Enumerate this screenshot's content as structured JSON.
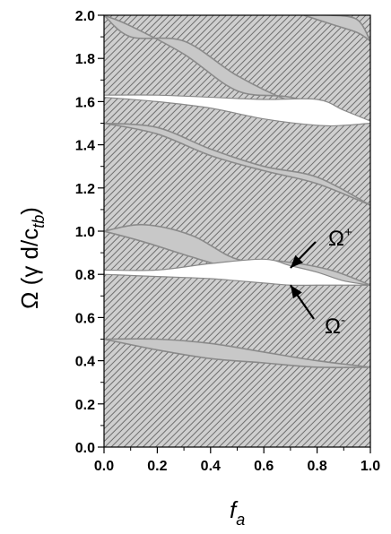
{
  "chart_data": {
    "type": "line",
    "title": "",
    "xlabel": "f",
    "xlabel_sub": "a",
    "ylabel": "Ω (γ d/c",
    "ylabel_sub": "tb",
    "ylabel_end": ")",
    "xlim": [
      0.0,
      1.0
    ],
    "ylim": [
      0.0,
      2.0
    ],
    "x_ticks": [
      0.0,
      0.2,
      0.4,
      0.6,
      0.8,
      1.0
    ],
    "x_tick_labels": [
      "0.0",
      "0.2",
      "0.4",
      "0.6",
      "0.8",
      "1.0"
    ],
    "y_ticks": [
      0.0,
      0.2,
      0.4,
      0.6,
      0.8,
      1.0,
      1.2,
      1.4,
      1.6,
      1.8,
      2.0
    ],
    "y_tick_labels": [
      "0.0",
      "0.2",
      "0.4",
      "0.6",
      "0.8",
      "1.0",
      "1.2",
      "1.4",
      "1.6",
      "1.8",
      "2.0"
    ],
    "grid": false,
    "legend": "none",
    "colors": {
      "hatched_background": "#bdbdbd",
      "band_fill": "#c8c8c8",
      "gap_fill": "#ffffff",
      "band_edge": "#8a8a8a"
    },
    "annotations": [
      {
        "text": "Ω",
        "sup": "+",
        "points_to": [
          0.7,
          0.83
        ]
      },
      {
        "text": "Ω",
        "sup": "-",
        "points_to": [
          0.7,
          0.75
        ]
      }
    ],
    "gap_regions": [
      {
        "x": [
          0.0,
          0.2,
          0.4,
          0.6,
          0.7,
          0.8,
          0.9,
          1.0
        ],
        "upper": [
          0.82,
          0.82,
          0.85,
          0.87,
          0.84,
          0.81,
          0.77,
          0.75
        ],
        "lower": [
          0.8,
          0.79,
          0.78,
          0.76,
          0.75,
          0.75,
          0.75,
          0.75
        ]
      },
      {
        "x": [
          0.0,
          0.2,
          0.4,
          0.6,
          0.8,
          0.9,
          1.0
        ],
        "upper": [
          1.63,
          1.63,
          1.62,
          1.61,
          1.61,
          1.56,
          1.51
        ],
        "lower": [
          1.62,
          1.6,
          1.57,
          1.52,
          1.49,
          1.49,
          1.5
        ]
      }
    ],
    "series": [
      {
        "values_x": [
          0.0,
          0.2,
          0.4,
          0.6,
          0.8,
          1.0
        ],
        "values_y": [
          0.5,
          0.5,
          0.48,
          0.44,
          0.4,
          0.37
        ]
      },
      {
        "values_x": [
          0.0,
          0.2,
          0.4,
          0.6,
          0.8,
          1.0
        ],
        "values_y": [
          0.5,
          0.45,
          0.41,
          0.39,
          0.37,
          0.37
        ]
      },
      {
        "values_x": [
          0.0,
          0.15,
          0.33,
          0.5,
          0.67,
          0.85,
          1.0
        ],
        "values_y": [
          1.0,
          0.95,
          0.88,
          0.82,
          0.78,
          0.76,
          0.75
        ]
      },
      {
        "values_x": [
          0.0,
          0.15,
          0.33,
          0.5,
          0.67,
          0.85,
          1.0
        ],
        "values_y": [
          1.0,
          1.03,
          0.98,
          0.87,
          0.86,
          0.82,
          0.75
        ]
      },
      {
        "values_x": [
          0.0,
          0.2,
          0.4,
          0.6,
          0.8,
          1.0
        ],
        "values_y": [
          1.5,
          1.45,
          1.35,
          1.28,
          1.22,
          1.12
        ]
      },
      {
        "values_x": [
          0.0,
          0.2,
          0.4,
          0.6,
          0.8,
          1.0
        ],
        "values_y": [
          1.5,
          1.48,
          1.38,
          1.3,
          1.25,
          1.12
        ]
      },
      {
        "values_x": [
          0.0,
          0.1,
          0.3,
          0.5,
          0.7,
          0.9,
          1.0
        ],
        "values_y": [
          2.0,
          1.95,
          1.82,
          1.65,
          1.62,
          1.55,
          1.5
        ]
      },
      {
        "values_x": [
          0.0,
          0.1,
          0.3,
          0.5,
          0.7,
          0.9,
          1.0
        ],
        "values_y": [
          2.0,
          1.9,
          1.88,
          1.72,
          1.6,
          1.52,
          1.5
        ]
      },
      {
        "values_x": [
          0.75,
          0.85,
          0.95,
          1.0
        ],
        "values_y": [
          2.0,
          1.96,
          1.92,
          1.88
        ]
      },
      {
        "values_x": [
          0.75,
          0.85,
          0.95,
          1.0
        ],
        "values_y": [
          2.0,
          2.0,
          1.98,
          1.88
        ]
      }
    ]
  }
}
